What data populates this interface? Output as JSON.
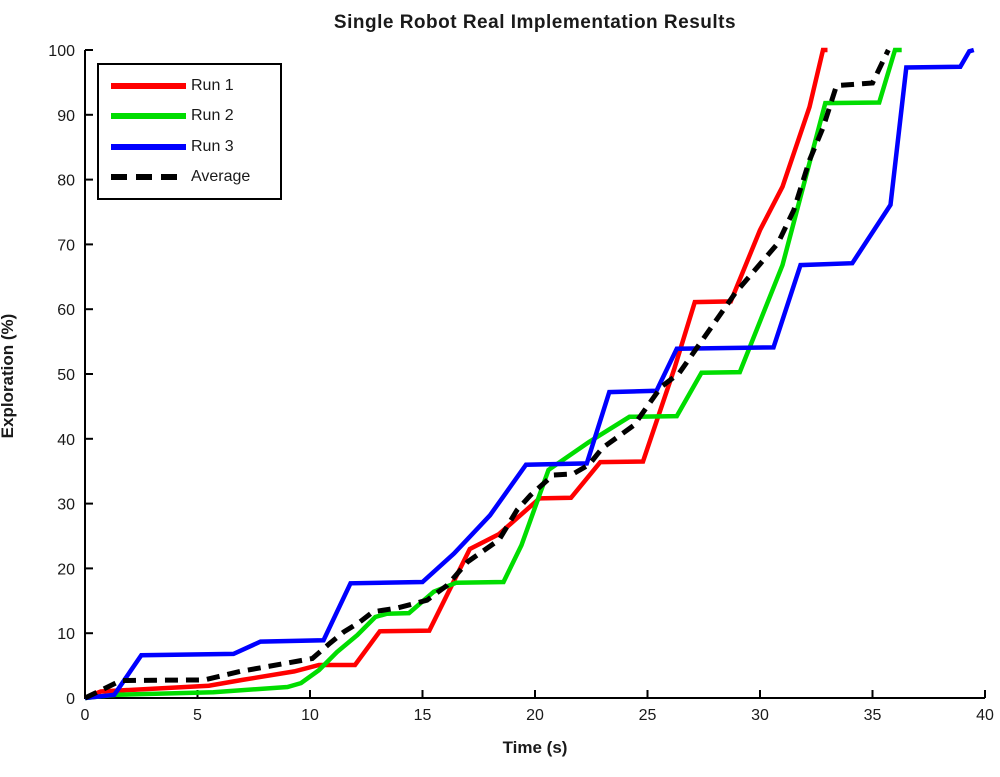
{
  "chart_data": {
    "type": "line",
    "title": "Single Robot Real Implementation Results",
    "xlabel": "Time (s)",
    "ylabel": "Exploration (%)",
    "xlim": [
      0,
      40
    ],
    "ylim": [
      0,
      100
    ],
    "xticks": [
      0,
      5,
      10,
      15,
      20,
      25,
      30,
      35,
      40
    ],
    "yticks": [
      0,
      10,
      20,
      30,
      40,
      50,
      60,
      70,
      80,
      90,
      100
    ],
    "grid": false,
    "legend_position": "top-left",
    "axis_color": "#000000",
    "series": [
      {
        "name": "Run 1",
        "color": "#ff0000",
        "style": "solid",
        "points": [
          [
            0,
            0
          ],
          [
            0.7,
            1
          ],
          [
            5.5,
            1.9
          ],
          [
            7,
            2.8
          ],
          [
            9.3,
            4.1
          ],
          [
            10.4,
            5.1
          ],
          [
            12,
            5.1
          ],
          [
            13.1,
            10.3
          ],
          [
            15.3,
            10.4
          ],
          [
            17.1,
            23
          ],
          [
            18.4,
            25.3
          ],
          [
            20.2,
            30.8
          ],
          [
            21.6,
            30.9
          ],
          [
            22.9,
            36.4
          ],
          [
            24.8,
            36.5
          ],
          [
            26.2,
            50.9
          ],
          [
            27.1,
            61.1
          ],
          [
            28.7,
            61.2
          ],
          [
            30,
            72.2
          ],
          [
            31,
            78.9
          ],
          [
            32.2,
            91.2
          ],
          [
            32.8,
            100
          ],
          [
            33,
            100
          ]
        ]
      },
      {
        "name": "Run 2",
        "color": "#00dd00",
        "style": "solid",
        "points": [
          [
            0,
            0
          ],
          [
            1.4,
            0.5
          ],
          [
            5.7,
            0.9
          ],
          [
            9,
            1.7
          ],
          [
            9.6,
            2.3
          ],
          [
            10.4,
            4.3
          ],
          [
            11.2,
            7.1
          ],
          [
            12.1,
            9.7
          ],
          [
            12.9,
            12.5
          ],
          [
            13.4,
            13
          ],
          [
            14.4,
            13.1
          ],
          [
            15.5,
            16.4
          ],
          [
            16.5,
            17.8
          ],
          [
            18.6,
            17.9
          ],
          [
            19.4,
            23.6
          ],
          [
            20.6,
            35.2
          ],
          [
            22.4,
            39.5
          ],
          [
            24.2,
            43.4
          ],
          [
            26.3,
            43.5
          ],
          [
            27.4,
            50.2
          ],
          [
            29.1,
            50.3
          ],
          [
            31,
            66.8
          ],
          [
            32.9,
            91.8
          ],
          [
            35.3,
            91.9
          ],
          [
            36,
            100
          ],
          [
            36.3,
            100
          ]
        ]
      },
      {
        "name": "Run 3",
        "color": "#0000ff",
        "style": "solid",
        "points": [
          [
            0,
            0
          ],
          [
            1.3,
            0.5
          ],
          [
            2.5,
            6.6
          ],
          [
            6.6,
            6.8
          ],
          [
            7.8,
            8.7
          ],
          [
            10.6,
            8.9
          ],
          [
            11.8,
            17.7
          ],
          [
            15,
            17.9
          ],
          [
            16.4,
            22.3
          ],
          [
            18,
            28.2
          ],
          [
            19.6,
            36
          ],
          [
            22.3,
            36.2
          ],
          [
            23.3,
            47.2
          ],
          [
            25.4,
            47.4
          ],
          [
            26.3,
            53.9
          ],
          [
            30.6,
            54.1
          ],
          [
            31.8,
            66.8
          ],
          [
            34.1,
            67.1
          ],
          [
            35.8,
            76.1
          ],
          [
            36.5,
            97.3
          ],
          [
            38.9,
            97.4
          ],
          [
            39.3,
            99.8
          ],
          [
            39.5,
            100
          ]
        ]
      },
      {
        "name": "Average",
        "color": "#000000",
        "style": "dashed",
        "points": [
          [
            0,
            0
          ],
          [
            1.6,
            2.7
          ],
          [
            5.3,
            2.8
          ],
          [
            6.9,
            4.1
          ],
          [
            9,
            5.4
          ],
          [
            10.1,
            6.1
          ],
          [
            10.9,
            8.5
          ],
          [
            11.5,
            10.2
          ],
          [
            12.2,
            11.7
          ],
          [
            12.8,
            13.3
          ],
          [
            13.9,
            13.9
          ],
          [
            15.2,
            15.1
          ],
          [
            16.1,
            17.4
          ],
          [
            17,
            21
          ],
          [
            18.4,
            24.4
          ],
          [
            19.2,
            29
          ],
          [
            19.8,
            31.3
          ],
          [
            20.8,
            34.4
          ],
          [
            21.7,
            34.6
          ],
          [
            22.4,
            36
          ],
          [
            23,
            38.6
          ],
          [
            24.4,
            42.1
          ],
          [
            25.6,
            48
          ],
          [
            26.4,
            50.1
          ],
          [
            28.9,
            62.5
          ],
          [
            30.8,
            70.2
          ],
          [
            31.5,
            75.3
          ],
          [
            32.2,
            83
          ],
          [
            32.8,
            88
          ],
          [
            33.4,
            94.5
          ],
          [
            35,
            94.9
          ],
          [
            35.7,
            100
          ]
        ]
      }
    ]
  }
}
